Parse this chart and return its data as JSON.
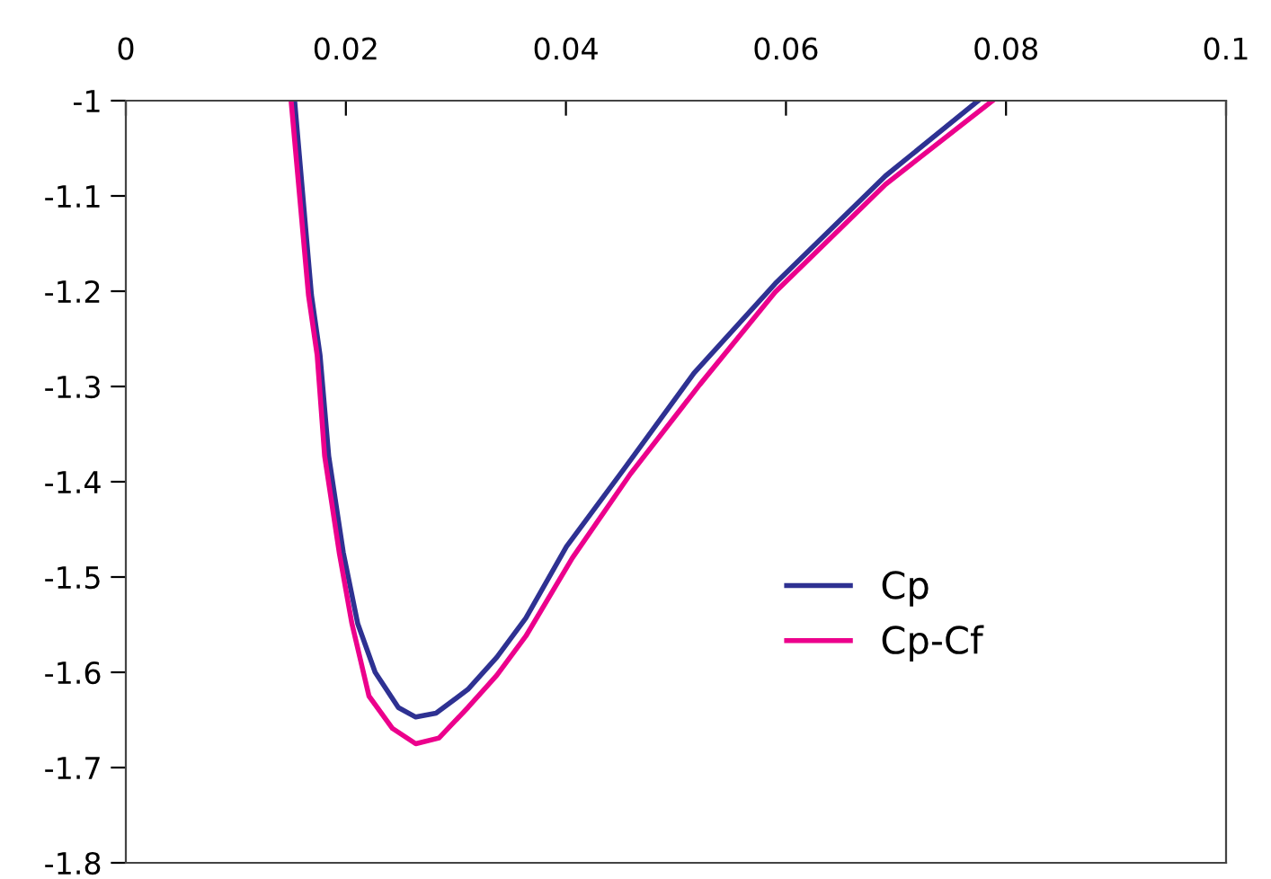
{
  "chart_data": {
    "type": "line",
    "xlim": [
      0,
      0.1
    ],
    "xticks": [
      0,
      0.02,
      0.04,
      0.06,
      0.08,
      0.1
    ],
    "ylim": [
      -1.8,
      -1
    ],
    "yticks": [
      -1,
      -1.1,
      -1.2,
      -1.3,
      -1.4,
      -1.5,
      -1.6,
      -1.7,
      -1.8
    ],
    "grid": false,
    "legend": "bottom right",
    "marker": "none",
    "line_style": "solid",
    "series": [
      {
        "name": "Cp",
        "color": "#2e3192",
        "x": [
          0.01534,
          0.01687,
          0.01765,
          0.01844,
          0.01976,
          0.02108,
          0.02266,
          0.02477,
          0.02635,
          0.02819,
          0.03109,
          0.03373,
          0.03636,
          0.04005,
          0.04532,
          0.05164,
          0.05902,
          0.06904,
          0.07747
        ],
        "values": [
          -1.0,
          -1.204,
          -1.267,
          -1.373,
          -1.474,
          -1.549,
          -1.6,
          -1.637,
          -1.647,
          -1.643,
          -1.618,
          -1.584,
          -1.543,
          -1.468,
          -1.386,
          -1.286,
          -1.192,
          -1.079,
          -1.0
        ]
      },
      {
        "name": "Cp-Cf",
        "color": "#ec008c",
        "x": [
          0.01502,
          0.0166,
          0.01739,
          0.01807,
          0.01939,
          0.02055,
          0.0221,
          0.02424,
          0.02635,
          0.02846,
          0.03109,
          0.03373,
          0.03636,
          0.04058,
          0.04585,
          0.05217,
          0.05902,
          0.06904,
          0.07878
        ],
        "values": [
          -1.0,
          -1.204,
          -1.267,
          -1.373,
          -1.474,
          -1.549,
          -1.625,
          -1.659,
          -1.675,
          -1.669,
          -1.637,
          -1.603,
          -1.562,
          -1.48,
          -1.392,
          -1.298,
          -1.201,
          -1.088,
          -1.0
        ]
      }
    ]
  }
}
